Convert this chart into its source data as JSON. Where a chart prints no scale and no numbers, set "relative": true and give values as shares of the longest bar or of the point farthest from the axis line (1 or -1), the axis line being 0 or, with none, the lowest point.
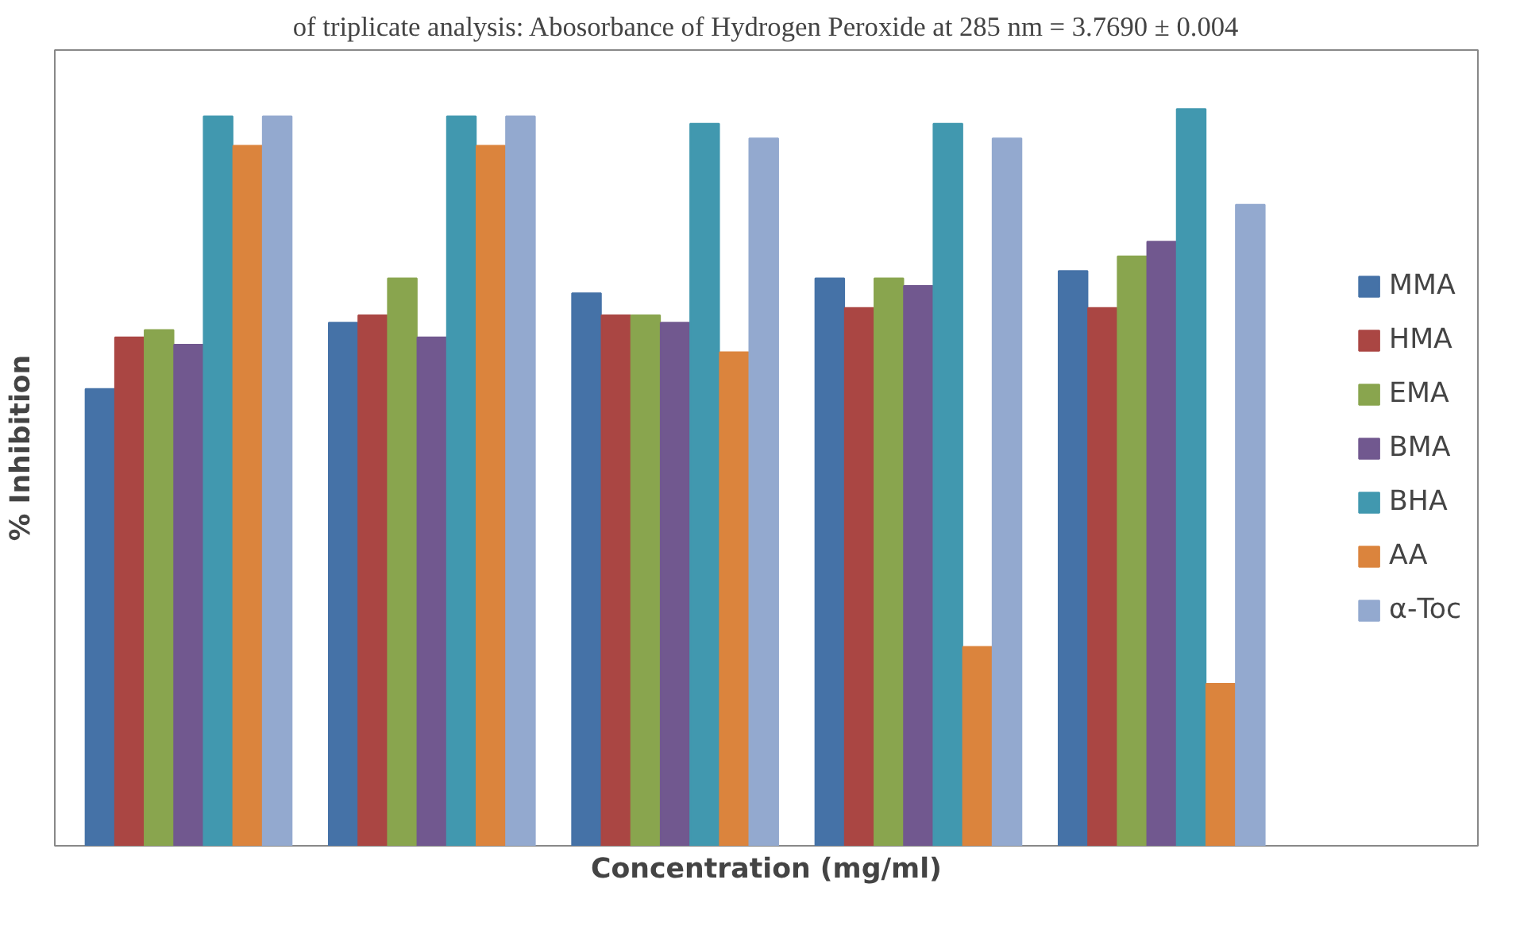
{
  "chart_data": {
    "type": "bar",
    "relative": true,
    "xlabel": "Concentration (mg/ml)",
    "ylabel": "% Inhibition",
    "annotations": [
      "of triplicate analysis: Abosorbance of Hydrogen Peroxide at 285 nm = 3.7690 ± 0.004"
    ],
    "categories": [
      null,
      null,
      null,
      null,
      null
    ],
    "legend": "right",
    "series": [
      {
        "name": "MMA",
        "color": "#4572a7",
        "values": [
          0.62,
          0.71,
          0.75,
          0.77,
          0.78
        ]
      },
      {
        "name": "HMA",
        "color": "#aa4643",
        "values": [
          0.69,
          0.72,
          0.72,
          0.73,
          0.73
        ]
      },
      {
        "name": "EMA",
        "color": "#89a54e",
        "values": [
          0.7,
          0.77,
          0.72,
          0.77,
          0.8
        ]
      },
      {
        "name": "BMA",
        "color": "#71588f",
        "values": [
          0.68,
          0.69,
          0.71,
          0.76,
          0.82
        ]
      },
      {
        "name": "BHA",
        "color": "#4198af",
        "values": [
          0.99,
          0.99,
          0.98,
          0.98,
          1.0
        ]
      },
      {
        "name": "AA",
        "color": "#db843d",
        "values": [
          0.95,
          0.95,
          0.67,
          0.27,
          0.22
        ]
      },
      {
        "name": "α-Toc",
        "color": "#93a9cf",
        "values": [
          0.99,
          0.99,
          0.96,
          0.96,
          0.87
        ]
      }
    ]
  }
}
